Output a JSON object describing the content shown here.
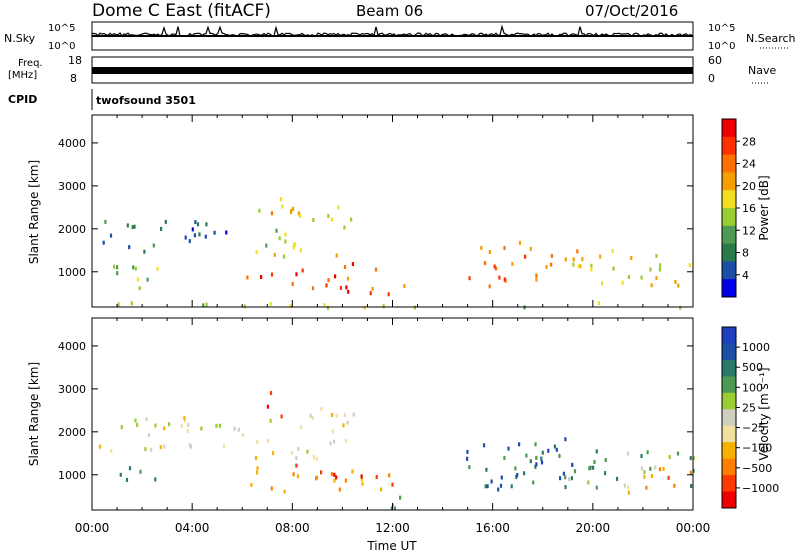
{
  "header": {
    "title": "Dome C East (fitACF)",
    "beam": "Beam 06",
    "date": "07/Oct/2016"
  },
  "strips": {
    "nsky_label": "N.Sky",
    "nsky_ticks": [
      "10^5",
      "10^0"
    ],
    "nsearch_label": "N.Search",
    "freq_label_1": "Freq.",
    "freq_label_2": "[MHz]",
    "freq_ticks": [
      "18",
      "8"
    ],
    "nave_ticks": [
      "60",
      "0"
    ],
    "nave_label": "Nave",
    "cpid_label": "CPID",
    "cpid_value": "twofsound 3501"
  },
  "chart_data": [
    {
      "type": "heatmap",
      "panel": "power",
      "xlabel": "Time UT",
      "ylabel": "Slant Range [km]",
      "x_ticks": [
        "00:00",
        "04:00",
        "08:00",
        "12:00",
        "16:00",
        "20:00",
        "00:00"
      ],
      "y_ticks": [
        1000,
        2000,
        3000,
        4000
      ],
      "ylim": [
        180,
        4650
      ],
      "xlim_hours": [
        0,
        24
      ],
      "colorbar_label": "Power [dB]",
      "colorbar_ticks": [
        "28",
        "24",
        "20",
        "16",
        "12",
        "8",
        "4"
      ],
      "colorscale": [
        "#0000e6",
        "#1e4fa8",
        "#2a7a4a",
        "#4f9a52",
        "#9acd32",
        "#f0e020",
        "#f5a000",
        "#ff7000",
        "#ff3000",
        "#ee0000"
      ],
      "regions": [
        {
          "t": [
            0.2,
            2.5
          ],
          "r": [
            1500,
            2300
          ],
          "level": 0.25
        },
        {
          "t": [
            2.5,
            6.0
          ],
          "r": [
            1700,
            2300
          ],
          "level": 0.2
        },
        {
          "t": [
            0.8,
            3.0
          ],
          "r": [
            600,
            1200
          ],
          "level": 0.4
        },
        {
          "t": [
            6.0,
            10.5
          ],
          "r": [
            650,
            1250
          ],
          "level": 0.82
        },
        {
          "t": [
            10.0,
            12.5
          ],
          "r": [
            500,
            1100
          ],
          "level": 0.78
        },
        {
          "t": [
            6.5,
            10.5
          ],
          "r": [
            1400,
            2600
          ],
          "level": 0.5
        },
        {
          "t": [
            6.8,
            8.0
          ],
          "r": [
            2400,
            3000
          ],
          "level": 0.6
        },
        {
          "t": [
            11.3,
            12.9
          ],
          "r": [
            250,
            550
          ],
          "level": 0.9
        },
        {
          "t": [
            14.8,
            19.5
          ],
          "r": [
            700,
            1800
          ],
          "level": 0.75
        },
        {
          "t": [
            19.0,
            24.0
          ],
          "r": [
            700,
            1600
          ],
          "level": 0.55
        },
        {
          "t": [
            0.0,
            24.0
          ],
          "r": [
            200,
            320
          ],
          "level": 0.45
        }
      ]
    },
    {
      "type": "heatmap",
      "panel": "velocity",
      "xlabel": "Time UT",
      "ylabel": "Slant Range [km]",
      "x_ticks": [
        "00:00",
        "04:00",
        "08:00",
        "12:00",
        "16:00",
        "20:00",
        "00:00"
      ],
      "y_ticks": [
        1000,
        2000,
        3000,
        4000
      ],
      "ylim": [
        180,
        4650
      ],
      "xlim_hours": [
        0,
        24
      ],
      "colorbar_label": "Velocity [m s⁻¹]",
      "colorbar_ticks": [
        "1000",
        "500",
        "100",
        "25",
        "−25",
        "−100",
        "−500",
        "−1000"
      ],
      "colorscale": [
        "#ee0000",
        "#ff3a00",
        "#ff8000",
        "#f5b000",
        "#f0e0a0",
        "#cfcfc0",
        "#9acd32",
        "#4f9a52",
        "#2a7a6a",
        "#1e4fa8",
        "#1f3fc0"
      ],
      "regions": [
        {
          "t": [
            0.2,
            6.0
          ],
          "r": [
            1600,
            2400
          ],
          "level": 0.48
        },
        {
          "t": [
            0.8,
            3.0
          ],
          "r": [
            600,
            1200
          ],
          "level": 0.75
        },
        {
          "t": [
            6.0,
            10.5
          ],
          "r": [
            650,
            1300
          ],
          "level": 0.2
        },
        {
          "t": [
            9.5,
            12.0
          ],
          "r": [
            600,
            1200
          ],
          "level": 0.22
        },
        {
          "t": [
            6.5,
            10.5
          ],
          "r": [
            1400,
            2600
          ],
          "level": 0.45
        },
        {
          "t": [
            6.8,
            8.0
          ],
          "r": [
            2400,
            3000
          ],
          "level": 0.18
        },
        {
          "t": [
            11.3,
            12.9
          ],
          "r": [
            250,
            550
          ],
          "level": 0.72
        },
        {
          "t": [
            14.8,
            19.5
          ],
          "r": [
            700,
            1800
          ],
          "level": 0.78
        },
        {
          "t": [
            17.5,
            19.0
          ],
          "r": [
            1200,
            1900
          ],
          "level": 0.92
        },
        {
          "t": [
            19.0,
            24.0
          ],
          "r": [
            700,
            1600
          ],
          "level": 0.65
        },
        {
          "t": [
            21.0,
            24.0
          ],
          "r": [
            600,
            1200
          ],
          "level": 0.3
        }
      ]
    }
  ]
}
